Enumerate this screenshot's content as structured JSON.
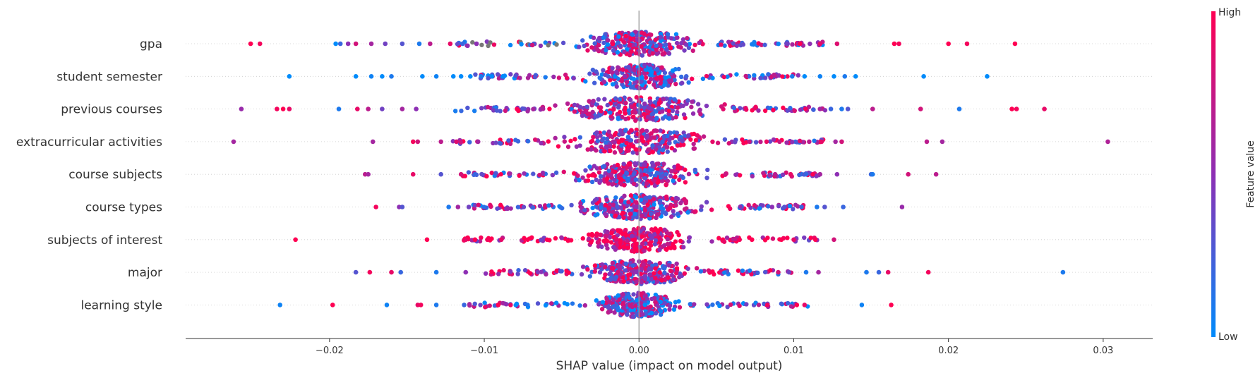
{
  "chart_data": {
    "type": "scatter",
    "subtype": "shap-beeswarm",
    "xlabel": "SHAP value (impact on model output)",
    "xlim": [
      -0.0293,
      0.0332
    ],
    "xticks": [
      -0.02,
      -0.01,
      0.0,
      0.01,
      0.02,
      0.03
    ],
    "xtick_labels": [
      "−0.02",
      "−0.01",
      "0.00",
      "0.01",
      "0.02",
      "0.03"
    ],
    "features": [
      {
        "name": "gpa",
        "spread": 0.0035,
        "dense": 0.0042,
        "avg": 0.5,
        "gray": true,
        "points": [
          {
            "x": -0.0251,
            "v": 1.0
          },
          {
            "x": -0.0245,
            "v": 0.95
          },
          {
            "x": -0.0196,
            "v": 0.0
          },
          {
            "x": -0.0193,
            "v": 0.2
          },
          {
            "x": -0.0188,
            "v": 0.5
          },
          {
            "x": -0.0183,
            "v": 0.8
          },
          {
            "x": -0.0173,
            "v": 0.6
          },
          {
            "x": -0.0164,
            "v": 0.4
          },
          {
            "x": -0.0153,
            "v": 0.3
          },
          {
            "x": -0.0142,
            "v": 0.1
          },
          {
            "x": -0.0135,
            "v": 0.7
          },
          {
            "x": -0.0122,
            "v": 0.9
          },
          {
            "x": -0.0114,
            "v": 0.2
          },
          {
            "x": -0.0105,
            "v": 0.5
          },
          {
            "x": 0.0096,
            "v": 0.4
          },
          {
            "x": 0.0104,
            "v": 1.0
          },
          {
            "x": 0.0117,
            "v": 0.9
          },
          {
            "x": 0.0128,
            "v": 0.85
          },
          {
            "x": 0.0165,
            "v": 1.0
          },
          {
            "x": 0.0168,
            "v": 0.95
          },
          {
            "x": 0.02,
            "v": 1.0
          },
          {
            "x": 0.0212,
            "v": 0.95
          },
          {
            "x": 0.0243,
            "v": 1.0
          }
        ]
      },
      {
        "name": "student semester",
        "spread": 0.0028,
        "dense": 0.004,
        "avg": 0.45,
        "points": [
          {
            "x": -0.0226,
            "v": 0.0
          },
          {
            "x": -0.0183,
            "v": 0.0
          },
          {
            "x": -0.0173,
            "v": 0.05
          },
          {
            "x": -0.0166,
            "v": 0.0
          },
          {
            "x": -0.016,
            "v": 0.1
          },
          {
            "x": -0.014,
            "v": 0.0
          },
          {
            "x": -0.0131,
            "v": 0.05
          },
          {
            "x": -0.012,
            "v": 0.0
          },
          {
            "x": -0.0115,
            "v": 0.0
          },
          {
            "x": -0.0109,
            "v": 0.0
          },
          {
            "x": -0.0102,
            "v": 0.1
          },
          {
            "x": -0.0095,
            "v": 0.0
          },
          {
            "x": -0.0088,
            "v": 0.0
          },
          {
            "x": 0.0099,
            "v": 0.1
          },
          {
            "x": 0.0107,
            "v": 0.0
          },
          {
            "x": 0.0117,
            "v": 0.05
          },
          {
            "x": 0.0126,
            "v": 0.0
          },
          {
            "x": 0.0133,
            "v": 0.1
          },
          {
            "x": 0.014,
            "v": 0.0
          },
          {
            "x": 0.0184,
            "v": 0.0
          },
          {
            "x": 0.0225,
            "v": 0.0
          }
        ]
      },
      {
        "name": "previous courses",
        "spread": 0.004,
        "dense": 0.0038,
        "avg": 0.6,
        "points": [
          {
            "x": -0.0257,
            "v": 0.55
          },
          {
            "x": -0.0234,
            "v": 0.95
          },
          {
            "x": -0.023,
            "v": 1.0
          },
          {
            "x": -0.0226,
            "v": 0.9
          },
          {
            "x": -0.0194,
            "v": 0.1
          },
          {
            "x": -0.0182,
            "v": 0.9
          },
          {
            "x": -0.0175,
            "v": 0.7
          },
          {
            "x": -0.0166,
            "v": 0.4
          },
          {
            "x": -0.0153,
            "v": 0.6
          },
          {
            "x": -0.0144,
            "v": 0.5
          },
          {
            "x": 0.0117,
            "v": 0.6
          },
          {
            "x": 0.0124,
            "v": 0.2
          },
          {
            "x": 0.0131,
            "v": 0.1
          },
          {
            "x": 0.0135,
            "v": 0.3
          },
          {
            "x": 0.0151,
            "v": 0.7
          },
          {
            "x": 0.0182,
            "v": 0.8
          },
          {
            "x": 0.0207,
            "v": 0.1
          },
          {
            "x": 0.0241,
            "v": 1.0
          },
          {
            "x": 0.0244,
            "v": 0.95
          },
          {
            "x": 0.0262,
            "v": 0.9
          }
        ]
      },
      {
        "name": "extracurricular activities",
        "spread": 0.0038,
        "dense": 0.004,
        "avg": 0.65,
        "points": [
          {
            "x": -0.0262,
            "v": 0.6
          },
          {
            "x": -0.0172,
            "v": 0.6
          },
          {
            "x": -0.0146,
            "v": 0.95
          },
          {
            "x": -0.0143,
            "v": 0.8
          },
          {
            "x": -0.0128,
            "v": 0.7
          },
          {
            "x": -0.0118,
            "v": 0.85
          },
          {
            "x": -0.0104,
            "v": 0.6
          },
          {
            "x": 0.011,
            "v": 0.7
          },
          {
            "x": 0.0118,
            "v": 0.9
          },
          {
            "x": 0.0127,
            "v": 0.6
          },
          {
            "x": 0.0131,
            "v": 0.8
          },
          {
            "x": 0.0186,
            "v": 0.7
          },
          {
            "x": 0.0196,
            "v": 0.6
          },
          {
            "x": 0.0303,
            "v": 0.65
          }
        ]
      },
      {
        "name": "course subjects",
        "spread": 0.0035,
        "dense": 0.004,
        "avg": 0.6,
        "points": [
          {
            "x": -0.0177,
            "v": 0.7
          },
          {
            "x": -0.0175,
            "v": 0.6
          },
          {
            "x": -0.0146,
            "v": 0.9
          },
          {
            "x": -0.0128,
            "v": 0.3
          },
          {
            "x": -0.0115,
            "v": 0.8
          },
          {
            "x": -0.0106,
            "v": 0.2
          },
          {
            "x": 0.0088,
            "v": 0.7
          },
          {
            "x": 0.0098,
            "v": 0.9
          },
          {
            "x": 0.0108,
            "v": 0.2
          },
          {
            "x": 0.0117,
            "v": 0.6
          },
          {
            "x": 0.0128,
            "v": 0.5
          },
          {
            "x": 0.015,
            "v": 0.2
          },
          {
            "x": 0.0151,
            "v": 0.1
          },
          {
            "x": 0.0174,
            "v": 0.8
          },
          {
            "x": 0.0192,
            "v": 0.7
          }
        ]
      },
      {
        "name": "course types",
        "spread": 0.0033,
        "dense": 0.0036,
        "avg": 0.5,
        "points": [
          {
            "x": -0.017,
            "v": 0.95
          },
          {
            "x": -0.0155,
            "v": 0.5
          },
          {
            "x": -0.0153,
            "v": 0.3
          },
          {
            "x": -0.0123,
            "v": 0.1
          },
          {
            "x": -0.0117,
            "v": 0.6
          },
          {
            "x": -0.011,
            "v": 0.4
          },
          {
            "x": 0.0086,
            "v": 0.5
          },
          {
            "x": 0.0094,
            "v": 0.3
          },
          {
            "x": 0.0105,
            "v": 0.2
          },
          {
            "x": 0.0115,
            "v": 0.1
          },
          {
            "x": 0.012,
            "v": 0.3
          },
          {
            "x": 0.0132,
            "v": 0.2
          },
          {
            "x": 0.017,
            "v": 0.55
          }
        ]
      },
      {
        "name": "subjects of interest",
        "spread": 0.003,
        "dense": 0.0045,
        "avg": 0.88,
        "points": [
          {
            "x": -0.0222,
            "v": 1.0
          },
          {
            "x": -0.0137,
            "v": 1.0
          },
          {
            "x": -0.0112,
            "v": 0.9
          },
          {
            "x": -0.0106,
            "v": 1.0
          },
          {
            "x": -0.0098,
            "v": 0.95
          },
          {
            "x": -0.0089,
            "v": 0.9
          },
          {
            "x": 0.0065,
            "v": 0.95
          },
          {
            "x": 0.0073,
            "v": 1.0
          },
          {
            "x": 0.0092,
            "v": 1.0
          },
          {
            "x": 0.01,
            "v": 0.9
          },
          {
            "x": 0.0114,
            "v": 1.0
          },
          {
            "x": 0.0126,
            "v": 0.8
          }
        ]
      },
      {
        "name": "major",
        "spread": 0.003,
        "dense": 0.0034,
        "avg": 0.6,
        "points": [
          {
            "x": -0.0183,
            "v": 0.3
          },
          {
            "x": -0.0174,
            "v": 0.95
          },
          {
            "x": -0.016,
            "v": 0.9
          },
          {
            "x": -0.0154,
            "v": 0.2
          },
          {
            "x": -0.0131,
            "v": 0.1
          },
          {
            "x": -0.0112,
            "v": 0.5
          },
          {
            "x": 0.009,
            "v": 0.8
          },
          {
            "x": 0.0097,
            "v": 0.4
          },
          {
            "x": 0.0108,
            "v": 0.1
          },
          {
            "x": 0.0116,
            "v": 0.6
          },
          {
            "x": 0.0147,
            "v": 0.1
          },
          {
            "x": 0.0155,
            "v": 0.2
          },
          {
            "x": 0.0161,
            "v": 0.9
          },
          {
            "x": 0.0187,
            "v": 0.95
          },
          {
            "x": 0.0274,
            "v": 0.1
          }
        ]
      },
      {
        "name": "learning style",
        "spread": 0.0022,
        "dense": 0.005,
        "avg": 0.35,
        "points": [
          {
            "x": -0.0232,
            "v": 0.05
          },
          {
            "x": -0.0198,
            "v": 1.0
          },
          {
            "x": -0.0163,
            "v": 0.05
          },
          {
            "x": -0.0143,
            "v": 0.9
          },
          {
            "x": -0.0141,
            "v": 0.95
          },
          {
            "x": -0.0131,
            "v": 0.1
          },
          {
            "x": -0.0113,
            "v": 0.2
          },
          {
            "x": -0.0091,
            "v": 1.0
          },
          {
            "x": -0.0083,
            "v": 0.9
          },
          {
            "x": -0.0072,
            "v": 0.1
          },
          {
            "x": 0.0083,
            "v": 0.95
          },
          {
            "x": 0.0102,
            "v": 1.0
          },
          {
            "x": 0.0107,
            "v": 0.9
          },
          {
            "x": 0.0144,
            "v": 0.05
          },
          {
            "x": 0.0163,
            "v": 1.0
          }
        ]
      }
    ],
    "colorbar": {
      "label": "Feature value",
      "high_label": "High",
      "low_label": "Low",
      "low_color": "#008bfb",
      "high_color": "#ff0052",
      "mid_color": "#8d2fb4",
      "missing_color": "#777777"
    }
  }
}
